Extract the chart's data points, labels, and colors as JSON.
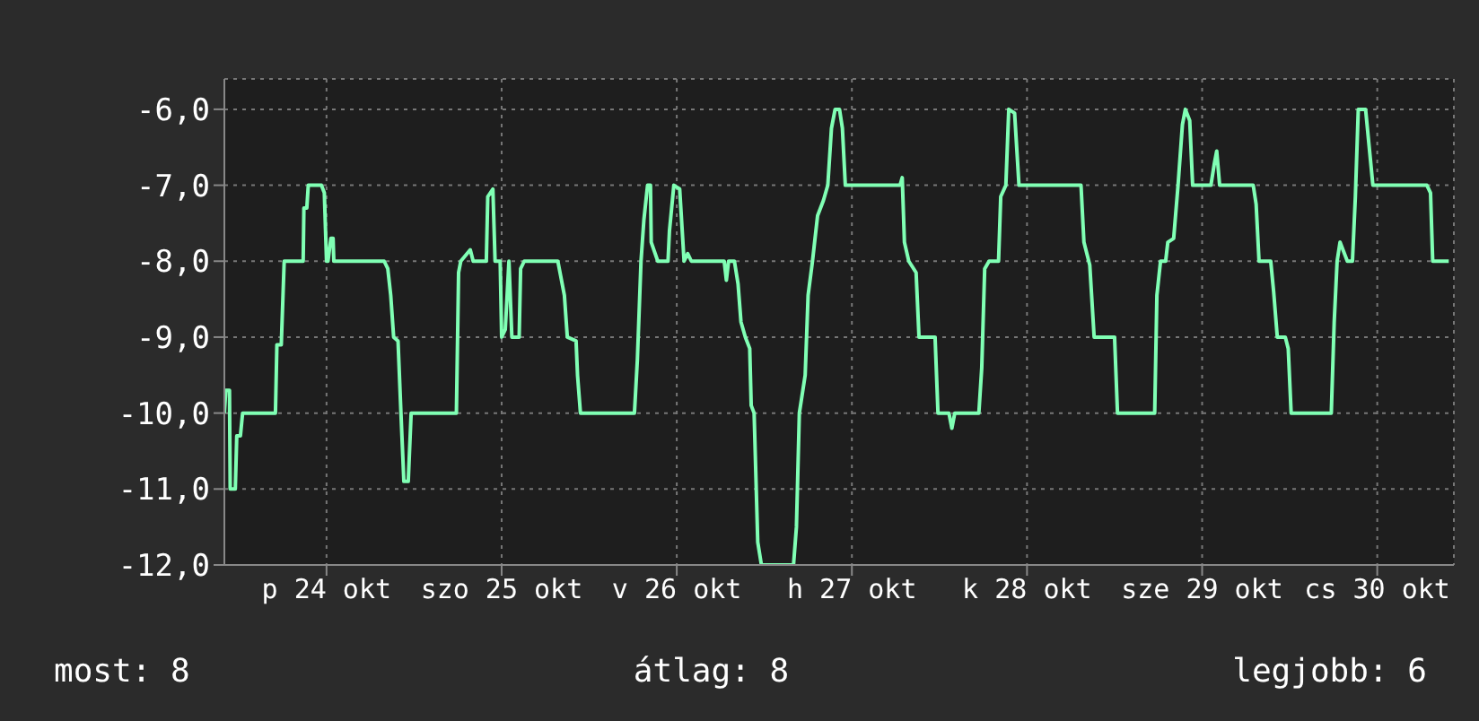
{
  "chart_data": {
    "type": "line",
    "color": "#80ffb4",
    "marker": "none",
    "line_style": "solid",
    "grid": true,
    "x": [
      "--10-23T22:00",
      "--10-23T22:12",
      "--10-23T22:42",
      "--10-23T22:48",
      "--10-23T23:30",
      "--10-23T23:42",
      "--10-24T00:12",
      "--10-24T00:30",
      "--10-24T05:00",
      "--10-24T05:12",
      "--10-24T05:48",
      "--10-24T06:12",
      "--10-24T08:48",
      "--10-24T08:54",
      "--10-24T09:18",
      "--10-24T09:30",
      "--10-24T11:18",
      "--10-24T11:42",
      "--10-24T12:00",
      "--10-24T12:12",
      "--10-24T12:36",
      "--10-24T12:54",
      "--10-24T13:00",
      "--10-24T19:54",
      "--10-24T20:24",
      "--10-24T20:48",
      "--10-24T21:12",
      "--10-24T21:48",
      "--10-24T22:12",
      "--10-24T22:36",
      "--10-24T23:12",
      "--10-24T23:36",
      "--10-25T05:48",
      "--10-25T06:06",
      "--10-25T06:24",
      "--10-25T07:42",
      "--10-25T08:06",
      "--10-25T09:54",
      "--10-25T10:06",
      "--10-25T10:48",
      "--10-25T11:06",
      "--10-25T11:48",
      "--10-25T12:00",
      "--10-25T12:30",
      "--10-25T13:00",
      "--10-25T13:24",
      "--10-25T14:24",
      "--10-25T14:36",
      "--10-25T15:06",
      "--10-25T19:42",
      "--10-25T20:06",
      "--10-25T20:36",
      "--10-25T21:00",
      "--10-25T22:12",
      "--10-25T22:24",
      "--10-25T22:48",
      "--10-26T06:12",
      "--10-26T06:36",
      "--10-26T07:06",
      "--10-26T07:30",
      "--10-26T08:00",
      "--10-26T08:24",
      "--10-26T08:30",
      "--10-26T09:24",
      "--10-26T10:48",
      "--10-26T11:00",
      "--10-26T11:36",
      "--10-26T12:24",
      "--10-26T13:00",
      "--10-26T13:30",
      "--10-26T14:00",
      "--10-26T18:30",
      "--10-26T18:48",
      "--10-26T19:06",
      "--10-26T19:54",
      "--10-26T20:24",
      "--10-26T20:48",
      "--10-26T21:24",
      "--10-26T22:00",
      "--10-26T22:12",
      "--10-26T22:36",
      "--10-26T23:06",
      "--10-26T23:36",
      "--10-27T04:00",
      "--10-27T04:24",
      "--10-27T04:48",
      "--10-27T05:36",
      "--10-27T06:00",
      "--10-27T06:36",
      "--10-27T07:18",
      "--10-27T08:06",
      "--10-27T08:42",
      "--10-27T09:12",
      "--10-27T09:42",
      "--10-27T10:18",
      "--10-27T10:42",
      "--10-27T11:06",
      "--10-27T18:36",
      "--10-27T18:54",
      "--10-27T19:12",
      "--10-27T19:48",
      "--10-27T20:48",
      "--10-27T21:12",
      "--10-27T23:24",
      "--10-27T23:48",
      "--10-28T01:18",
      "--10-28T01:42",
      "--10-28T02:06",
      "--10-28T05:24",
      "--10-28T05:48",
      "--10-28T06:12",
      "--10-28T06:48",
      "--10-28T08:06",
      "--10-28T08:24",
      "--10-28T09:06",
      "--10-28T09:30",
      "--10-28T10:18",
      "--10-28T10:54",
      "--10-28T19:24",
      "--10-28T19:48",
      "--10-28T20:36",
      "--10-28T21:12",
      "--10-29T00:00",
      "--10-29T00:24",
      "--10-29T05:30",
      "--10-29T05:48",
      "--10-29T06:18",
      "--10-29T07:00",
      "--10-29T07:18",
      "--10-29T08:06",
      "--10-29T08:42",
      "--10-29T09:18",
      "--10-29T09:42",
      "--10-29T10:18",
      "--10-29T10:42",
      "--10-29T13:12",
      "--10-29T13:42",
      "--10-29T14:00",
      "--10-29T14:24",
      "--10-29T19:00",
      "--10-29T19:24",
      "--10-29T19:48",
      "--10-29T21:24",
      "--10-29T21:48",
      "--10-29T22:18",
      "--10-29T23:24",
      "--10-29T23:48",
      "--10-30T00:12",
      "--10-30T05:42",
      "--10-30T06:06",
      "--10-30T06:30",
      "--10-30T06:54",
      "--10-30T07:54",
      "--10-30T08:36",
      "--10-30T09:00",
      "--10-30T09:24",
      "--10-30T10:24",
      "--10-30T11:00",
      "--10-30T11:24",
      "--10-30T18:48",
      "--10-30T19:18",
      "--10-30T19:36",
      "--10-30T21:48"
    ],
    "values": [
      -10.0,
      -9.7,
      -9.7,
      -11.0,
      -11.0,
      -10.3,
      -10.3,
      -10.0,
      -10.0,
      -9.1,
      -9.1,
      -8.0,
      -8.0,
      -7.3,
      -7.3,
      -7.0,
      -7.0,
      -7.1,
      -8.0,
      -8.0,
      -7.7,
      -7.7,
      -8.0,
      -8.0,
      -8.1,
      -8.45,
      -9.0,
      -9.05,
      -10.0,
      -10.9,
      -10.9,
      -10.0,
      -10.0,
      -8.15,
      -8.0,
      -7.85,
      -8.0,
      -8.0,
      -7.15,
      -7.05,
      -8.0,
      -8.0,
      -9.0,
      -8.9,
      -8.0,
      -9.0,
      -9.0,
      -8.1,
      -8.0,
      -8.0,
      -8.2,
      -8.45,
      -9.0,
      -9.05,
      -9.5,
      -10.0,
      -10.0,
      -9.3,
      -8.0,
      -7.45,
      -7.0,
      -7.0,
      -7.75,
      -8.0,
      -8.0,
      -7.6,
      -7.0,
      -7.05,
      -8.0,
      -7.9,
      -8.0,
      -8.0,
      -8.25,
      -8.0,
      -8.0,
      -8.3,
      -8.8,
      -9.0,
      -9.15,
      -9.9,
      -10.0,
      -11.7,
      -12.0,
      -12.0,
      -11.5,
      -10.0,
      -9.5,
      -8.45,
      -8.0,
      -7.4,
      -7.2,
      -7.0,
      -6.25,
      -6.0,
      -6.0,
      -6.25,
      -7.0,
      -7.0,
      -6.9,
      -7.75,
      -8.0,
      -8.15,
      -9.0,
      -9.0,
      -10.0,
      -10.0,
      -10.2,
      -10.0,
      -10.0,
      -9.4,
      -8.1,
      -8.0,
      -8.0,
      -7.15,
      -7.0,
      -6.0,
      -6.05,
      -7.0,
      -7.0,
      -7.75,
      -8.05,
      -9.0,
      -9.0,
      -10.0,
      -10.0,
      -8.45,
      -8.0,
      -8.0,
      -7.75,
      -7.7,
      -7.0,
      -6.2,
      -6.0,
      -6.15,
      -7.0,
      -7.0,
      -6.7,
      -6.55,
      -7.0,
      -7.0,
      -7.25,
      -8.0,
      -8.0,
      -8.4,
      -9.0,
      -9.0,
      -9.15,
      -10.0,
      -10.0,
      -8.8,
      -8.0,
      -7.75,
      -8.0,
      -8.0,
      -7.15,
      -6.0,
      -6.0,
      -6.6,
      -7.0,
      -7.0,
      -7.1,
      -8.0,
      -8.0
    ],
    "xlim": [
      "--10-23T22:00",
      "--10-30T22:30"
    ],
    "xticks": [
      {
        "value": "--10-24T12:00",
        "label": "p 24 okt"
      },
      {
        "value": "--10-25T12:00",
        "label": "szo 25 okt"
      },
      {
        "value": "--10-26T12:00",
        "label": "v 26 okt"
      },
      {
        "value": "--10-27T12:00",
        "label": "h 27 okt"
      },
      {
        "value": "--10-28T12:00",
        "label": "k 28 okt"
      },
      {
        "value": "--10-29T12:00",
        "label": "sze 29 okt"
      },
      {
        "value": "--10-30T12:00",
        "label": "cs 30 okt"
      }
    ],
    "ylim": [
      -12,
      -5.6
    ],
    "yticks": [
      {
        "value": -12,
        "label": "-12,0"
      },
      {
        "value": -11,
        "label": "-11,0"
      },
      {
        "value": -10,
        "label": "-10,0"
      },
      {
        "value": -9,
        "label": "-9,0"
      },
      {
        "value": -8,
        "label": "-8,0"
      },
      {
        "value": -7,
        "label": "-7,0"
      },
      {
        "value": -6,
        "label": "-6,0"
      }
    ],
    "annotations": [
      "most: 8",
      "átlag: 8",
      "legjobb: 6"
    ]
  }
}
